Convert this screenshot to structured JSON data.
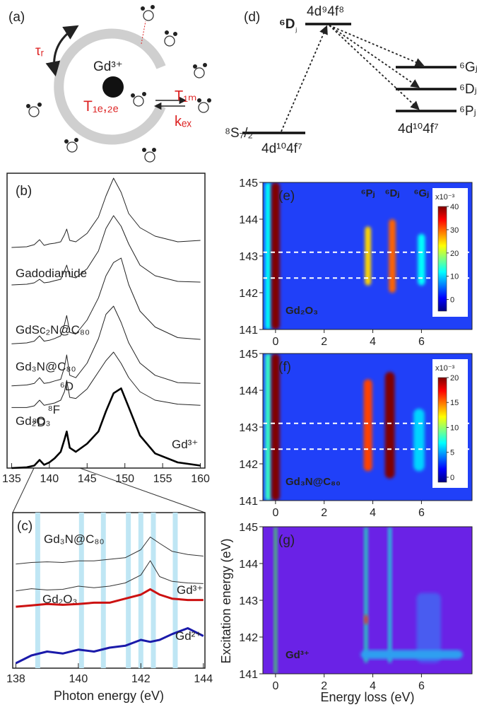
{
  "panel_a": {
    "label": "(a)",
    "tau": "τᵣ",
    "ion": "Gd³⁺",
    "t_electron": "T₁ₑ,₂ₑ",
    "t_water": "T₁ₘ",
    "k_exchange": "kₑₓ"
  },
  "panel_d": {
    "label": "(d)",
    "excited_state": "⁶D",
    "excited_subscript": "ⱼ",
    "excited_config": "4d⁹4f⁸",
    "ground_state": "⁸S₇/₂",
    "ground_config": "4d¹⁰4f⁷",
    "final_states": [
      "⁶Gⱼ",
      "⁶Dⱼ",
      "⁶Pⱼ"
    ],
    "final_config": "4d¹⁰4f⁷"
  },
  "chart_data": [
    {
      "type": "line",
      "label": "(b)",
      "xlim": [
        134.4,
        160.6
      ],
      "xticks": [
        135,
        140,
        145,
        150,
        155,
        160
      ],
      "x": [
        135,
        137,
        138,
        138.7,
        139.3,
        140,
        140.7,
        141.5,
        142,
        142.3,
        142.7,
        143.5,
        145,
        146.5,
        147.5,
        148.5,
        149.5,
        150.5,
        152,
        154,
        157,
        160
      ],
      "series": [
        {
          "color": "#222222",
          "values": [
            0.02,
            0.03,
            0.06,
            0.13,
            0.05,
            0.07,
            0.08,
            0.1,
            0.2,
            0.28,
            0.12,
            0.1,
            0.22,
            0.45,
            0.75,
            1.0,
            0.8,
            0.5,
            0.3,
            0.18,
            0.1,
            0.12
          ]
        },
        {
          "name": "Gadodiamide",
          "color": "#222222",
          "values": [
            0.02,
            0.03,
            0.05,
            0.1,
            0.05,
            0.06,
            0.08,
            0.1,
            0.22,
            0.3,
            0.14,
            0.12,
            0.25,
            0.5,
            0.82,
            1.0,
            0.85,
            0.6,
            0.3,
            0.15,
            0.07,
            0.06
          ]
        },
        {
          "name": "GdSc₂N@C₈₀",
          "color": "#222222",
          "values": [
            0.03,
            0.04,
            0.06,
            0.12,
            0.06,
            0.07,
            0.09,
            0.12,
            0.25,
            0.35,
            0.16,
            0.14,
            0.3,
            0.55,
            0.8,
            0.95,
            1.0,
            0.7,
            0.4,
            0.22,
            0.1,
            0.08
          ]
        },
        {
          "name": "Gd₃N@C₈₀",
          "color": "#222222",
          "values": [
            0.02,
            0.03,
            0.05,
            0.12,
            0.05,
            0.06,
            0.08,
            0.1,
            0.25,
            0.4,
            0.15,
            0.12,
            0.3,
            0.6,
            0.9,
            1.0,
            0.8,
            0.55,
            0.3,
            0.15,
            0.06,
            0.05
          ]
        },
        {
          "name": "Gd₂O₃",
          "color": "#222222",
          "values": [
            0.02,
            0.02,
            0.05,
            0.15,
            0.06,
            0.08,
            0.1,
            0.15,
            0.3,
            0.5,
            0.2,
            0.18,
            0.35,
            0.65,
            0.85,
            1.0,
            0.8,
            0.55,
            0.3,
            0.15,
            0.08,
            0.06
          ]
        },
        {
          "name": "Gd³⁺",
          "color": "#000000",
          "values": [
            0,
            0.01,
            0.03,
            0.1,
            0.04,
            0.07,
            0.12,
            0.2,
            0.35,
            0.45,
            0.25,
            0.2,
            0.3,
            0.45,
            0.7,
            0.92,
            0.98,
            0.75,
            0.4,
            0.18,
            0.07,
            0.03
          ]
        }
      ],
      "annotations": [
        {
          "text": "⁸D",
          "x": 138.6
        },
        {
          "text": "⁸F",
          "x": 140.6
        },
        {
          "text": "⁶D",
          "x": 142.3
        }
      ]
    },
    {
      "type": "line",
      "label": "(c)",
      "xlabel": "Photon energy (eV)",
      "xlim": [
        137.9,
        144.05
      ],
      "xticks": [
        138,
        140,
        142,
        144
      ],
      "x": [
        138,
        138.5,
        139,
        139.5,
        140,
        140.5,
        141,
        141.5,
        142,
        142.3,
        142.6,
        143,
        143.5,
        144
      ],
      "bands": [
        138.7,
        140.1,
        140.8,
        141.6,
        142.0,
        142.4,
        143.1
      ],
      "band_color": "#bfe6f4",
      "series": [
        {
          "name": "Gd₃N@C₈₀",
          "color": "#333333",
          "values": [
            0.05,
            0.1,
            0.12,
            0.1,
            0.15,
            0.15,
            0.2,
            0.25,
            0.5,
            0.9,
            0.7,
            0.45,
            0.35,
            0.3
          ]
        },
        {
          "name": "Gd₂O₃",
          "color": "#333333",
          "values": [
            0.05,
            0.12,
            0.08,
            0.1,
            0.2,
            0.15,
            0.2,
            0.3,
            0.55,
            1.0,
            0.5,
            0.35,
            0.3,
            0.28
          ]
        },
        {
          "name": "Gd³⁺",
          "color": "#cc1111",
          "values": [
            0.05,
            0.1,
            0.15,
            0.12,
            0.15,
            0.2,
            0.2,
            0.35,
            0.5,
            0.7,
            0.5,
            0.35,
            0.3,
            0.3
          ]
        },
        {
          "name": "Gd²⁺",
          "color": "#1a1aaa",
          "values": [
            0,
            0.2,
            0.3,
            0.25,
            0.35,
            0.3,
            0.4,
            0.45,
            0.6,
            0.55,
            0.6,
            0.75,
            0.9,
            0.7
          ]
        }
      ]
    },
    {
      "type": "heatmap",
      "label": "(e)",
      "sample": "Gd₂O₃",
      "background": "#2040f8",
      "xlim": [
        -0.52,
        8.08
      ],
      "xticks": [
        0,
        2,
        4,
        6
      ],
      "ylim": [
        141,
        145
      ],
      "yticks": [
        141,
        142,
        143,
        144,
        145
      ],
      "dashed_y": [
        143.1,
        142.4
      ],
      "peak_labels": {
        "text": [
          "⁶Pⱼ",
          "⁶Dⱼ",
          "⁶Gⱼ"
        ],
        "x": [
          3.8,
          4.8,
          6.0
        ]
      },
      "peaks": {
        "x": [
          -0.3,
          0,
          3.8,
          4.8,
          6.0
        ],
        "width": [
          0.25,
          0.35,
          0.25,
          0.28,
          0.3
        ],
        "y_from": [
          141,
          141,
          142.2,
          142.0,
          142.2
        ],
        "y_to": [
          145,
          145,
          143.8,
          144.0,
          143.6
        ],
        "values": [
          12,
          40,
          25,
          30,
          12
        ]
      },
      "colorbar": {
        "label": "x10⁻³",
        "clim": [
          -5,
          40
        ],
        "ticks": [
          0,
          10,
          20,
          30,
          40
        ]
      }
    },
    {
      "type": "heatmap",
      "label": "(f)",
      "sample": "Gd₃N@C₈₀",
      "background": "#2040f8",
      "xlim": [
        -0.52,
        8.08
      ],
      "xticks": [
        0,
        2,
        4,
        6
      ],
      "ylim": [
        141,
        145
      ],
      "yticks": [
        141,
        142,
        143,
        144,
        145
      ],
      "dashed_y": [
        143.1,
        142.4
      ],
      "peaks": {
        "x": [
          -0.3,
          0,
          3.8,
          4.7,
          5.9
        ],
        "width": [
          0.25,
          0.35,
          0.35,
          0.4,
          0.45
        ],
        "y_from": [
          141,
          141,
          141.8,
          141.6,
          141.8
        ],
        "y_to": [
          145,
          145,
          144.3,
          144.5,
          143.5
        ],
        "values": [
          8,
          20,
          16,
          20,
          6
        ]
      },
      "colorbar": {
        "label": "x10⁻³",
        "clim": [
          -1,
          20
        ],
        "ticks": [
          0,
          5,
          10,
          15,
          20
        ]
      }
    },
    {
      "type": "heatmap",
      "label": "(g)",
      "sample": "Gd³⁺",
      "background": "#6a22e6",
      "xlabel": "Energy loss (eV)",
      "ylabel": "Excitation energy (eV)",
      "xlim": [
        -0.52,
        8.08
      ],
      "xticks": [
        0,
        2,
        4,
        6
      ],
      "ylim": [
        141,
        145
      ],
      "yticks": [
        141,
        142,
        143,
        144,
        145
      ],
      "peaks": {
        "x": [
          0,
          3.72,
          4.7,
          6.3,
          5.6,
          3.72
        ],
        "width": [
          0.12,
          0.15,
          0.15,
          1.0,
          4.2,
          0.15
        ],
        "y_from": [
          141,
          141.3,
          141.3,
          141.3,
          141.4,
          142.35
        ],
        "y_to": [
          145,
          145,
          145,
          143.2,
          141.65,
          142.6
        ],
        "colors": [
          "#44d46a",
          "#25c9c0",
          "#2ac2d8",
          "#4a5cf0",
          "#2f9ff0",
          "#e03030"
        ]
      }
    }
  ]
}
